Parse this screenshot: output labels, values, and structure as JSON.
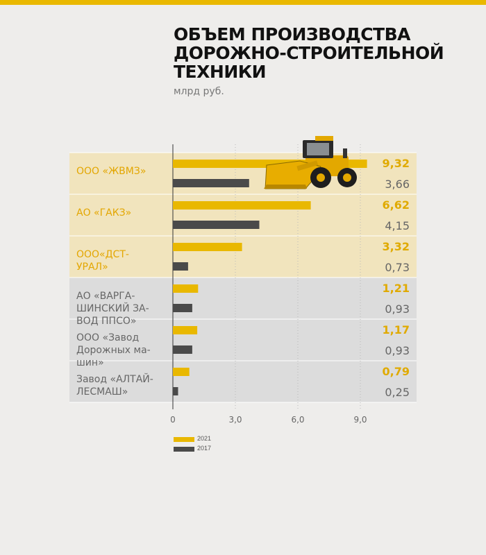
{
  "header": {
    "title": "ОБЪЕМ ПРОИЗВОДСТВА ДОРОЖНО-СТРОИТЕЛЬНОЙ ТЕХНИКИ",
    "subtitle": "млрд руб."
  },
  "colors": {
    "accent": "#e9b800",
    "series_2021": "#e9b800",
    "series_2017": "#4a4a4a",
    "value_2021": "#e0aa00",
    "value_2017": "#666666",
    "band_top": "#f1e4bd",
    "band_bottom": "#dcdcdc",
    "label_top": "#e3a600",
    "label_bottom": "#666666"
  },
  "image": {
    "icon": "wheel-loader-icon"
  },
  "chart_data": {
    "type": "bar",
    "orientation": "horizontal",
    "categories": [
      "ООО «ЖВМЗ»",
      "АО «ГАКЗ»",
      "ООО«ДСТ-УРАЛ»",
      "АО «ВАРГАШИНСКИЙ ЗАВОД ППСО»",
      "ООО «Завод Дорожных машин»",
      "Завод «АЛТАЙЛЕСМАШ»"
    ],
    "category_lines": [
      [
        "ООО «ЖВМЗ»"
      ],
      [
        "АО «ГАКЗ»"
      ],
      [
        "ООО«ДСТ-",
        "УРАЛ»"
      ],
      [
        "АО «ВАРГА-",
        "ШИНСКИЙ ЗА-",
        "ВОД ППСО»"
      ],
      [
        "ООО  «Завод",
        "Дорожных ма-",
        "шин»"
      ],
      [
        "Завод  «АЛТАЙ-",
        "ЛЕСМАШ»"
      ]
    ],
    "highlighted_categories": 3,
    "series": [
      {
        "name": "2021",
        "values": [
          9.32,
          6.62,
          3.32,
          1.21,
          1.17,
          0.79
        ],
        "labels": [
          "9,32",
          "6,62",
          "3,32",
          "1,21",
          "1,17",
          "0,79"
        ]
      },
      {
        "name": "2017",
        "values": [
          3.66,
          4.15,
          0.73,
          0.93,
          0.93,
          0.25
        ],
        "labels": [
          "3,66",
          "4,15",
          "0,73",
          "0,93",
          "0,93",
          "0,25"
        ]
      }
    ],
    "xlim": [
      0,
      9.3
    ],
    "xticks": [
      0,
      3,
      6,
      9
    ],
    "xtick_labels": [
      "0",
      "3,0",
      "6,0",
      "9,0"
    ],
    "grid": "vertical-dotted",
    "legend": "bottom-left"
  }
}
